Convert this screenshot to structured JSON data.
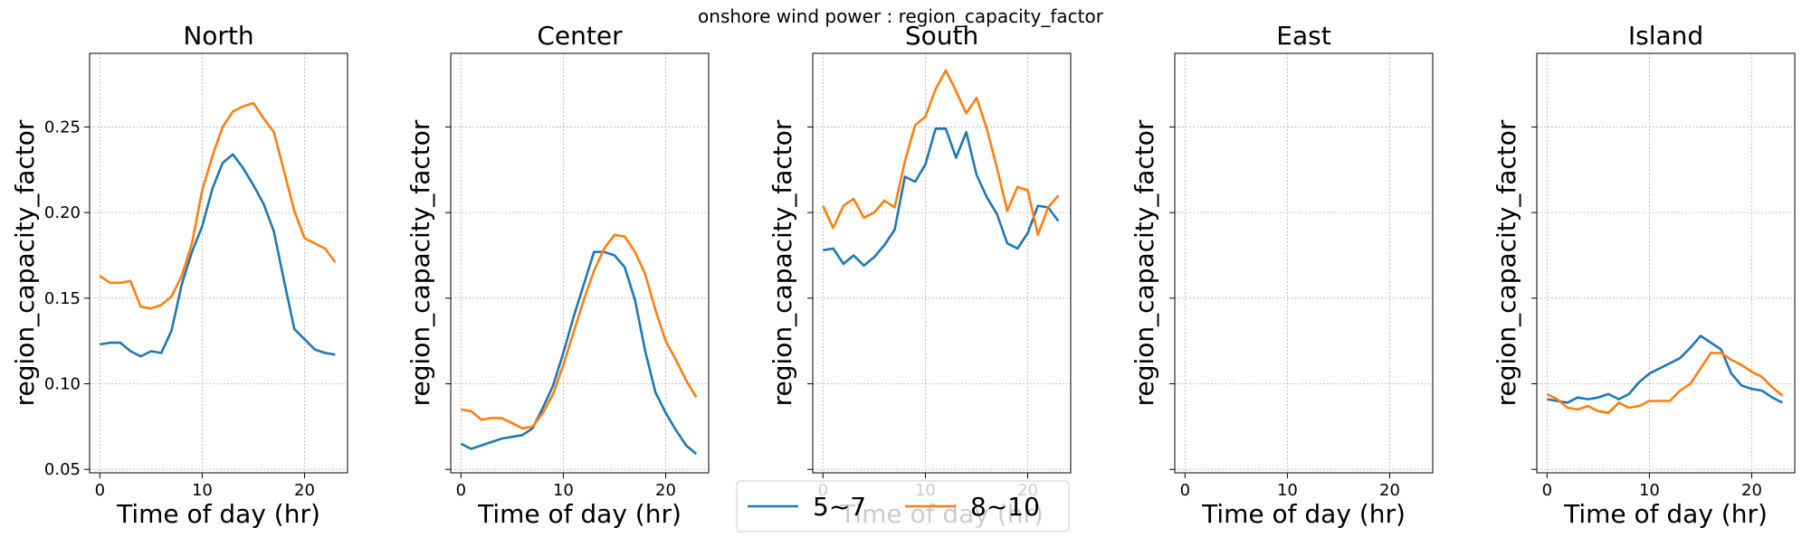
{
  "figure": {
    "suptitle": "onshore wind power : region_capacity_factor"
  },
  "colors": {
    "series_1": "#1f77b4",
    "series_2": "#ff7f0e",
    "grid": "#b0b0b0"
  },
  "legend": {
    "placement": "lower center",
    "entries": [
      "5~7",
      "8~10"
    ]
  },
  "chart_data": [
    {
      "type": "line",
      "title": "North",
      "xlabel": "Time of day (hr)",
      "ylabel": "region_capacity_factor",
      "xlim": [
        -1,
        24.2
      ],
      "ylim": [
        0.048,
        0.293
      ],
      "xticks": [
        0,
        10,
        20
      ],
      "yticks": [
        0.05,
        0.1,
        0.15,
        0.2,
        0.25
      ],
      "ytick_labels": [
        "0.05",
        "0.10",
        "0.15",
        "0.20",
        "0.25"
      ],
      "grid": true,
      "x": [
        0,
        1,
        2,
        3,
        4,
        5,
        6,
        7,
        8,
        9,
        10,
        11,
        12,
        13,
        14,
        15,
        16,
        17,
        18,
        19,
        20,
        21,
        22,
        23
      ],
      "series": [
        {
          "name": "5~7",
          "values": [
            0.123,
            0.124,
            0.124,
            0.119,
            0.116,
            0.119,
            0.118,
            0.131,
            0.158,
            0.177,
            0.192,
            0.214,
            0.229,
            0.234,
            0.226,
            0.216,
            0.205,
            0.189,
            0.16,
            0.132,
            0.126,
            0.12,
            0.118,
            0.117
          ]
        },
        {
          "name": "8~10",
          "values": [
            0.163,
            0.159,
            0.159,
            0.16,
            0.145,
            0.144,
            0.146,
            0.151,
            0.163,
            0.182,
            0.213,
            0.233,
            0.25,
            0.259,
            0.262,
            0.264,
            0.255,
            0.247,
            0.224,
            0.201,
            0.185,
            0.182,
            0.179,
            0.171
          ]
        }
      ]
    },
    {
      "type": "line",
      "title": "Center",
      "xlabel": "Time of day (hr)",
      "ylabel": "region_capacity_factor",
      "xlim": [
        -1,
        24.2
      ],
      "ylim": [
        0.048,
        0.293
      ],
      "xticks": [
        0,
        10,
        20
      ],
      "yticks": [
        0.05,
        0.1,
        0.15,
        0.2,
        0.25
      ],
      "ytick_labels": [
        "",
        "",
        "",
        "",
        ""
      ],
      "grid": true,
      "x": [
        0,
        1,
        2,
        3,
        4,
        5,
        6,
        7,
        8,
        9,
        10,
        11,
        12,
        13,
        14,
        15,
        16,
        17,
        18,
        19,
        20,
        21,
        22,
        23
      ],
      "series": [
        {
          "name": "5~7",
          "values": [
            0.065,
            0.062,
            0.064,
            0.066,
            0.068,
            0.069,
            0.07,
            0.074,
            0.086,
            0.099,
            0.118,
            0.139,
            0.158,
            0.177,
            0.177,
            0.175,
            0.168,
            0.149,
            0.119,
            0.095,
            0.083,
            0.073,
            0.064,
            0.059
          ]
        },
        {
          "name": "8~10",
          "values": [
            0.085,
            0.084,
            0.079,
            0.08,
            0.08,
            0.077,
            0.074,
            0.075,
            0.083,
            0.094,
            0.111,
            0.13,
            0.149,
            0.166,
            0.179,
            0.187,
            0.186,
            0.177,
            0.164,
            0.143,
            0.125,
            0.114,
            0.102,
            0.092
          ]
        }
      ]
    },
    {
      "type": "line",
      "title": "South",
      "xlabel": "Time of day (hr)",
      "ylabel": "region_capacity_factor",
      "xlim": [
        -1,
        24.2
      ],
      "ylim": [
        0.048,
        0.293
      ],
      "xticks": [
        0,
        10,
        20
      ],
      "yticks": [
        0.05,
        0.1,
        0.15,
        0.2,
        0.25
      ],
      "ytick_labels": [
        "",
        "",
        "",
        "",
        ""
      ],
      "grid": true,
      "x": [
        0,
        1,
        2,
        3,
        4,
        5,
        6,
        7,
        8,
        9,
        10,
        11,
        12,
        13,
        14,
        15,
        16,
        17,
        18,
        19,
        20,
        21,
        22,
        23
      ],
      "series": [
        {
          "name": "5~7",
          "values": [
            0.178,
            0.179,
            0.17,
            0.175,
            0.169,
            0.174,
            0.181,
            0.19,
            0.221,
            0.218,
            0.228,
            0.249,
            0.249,
            0.232,
            0.247,
            0.222,
            0.209,
            0.199,
            0.182,
            0.179,
            0.188,
            0.204,
            0.203,
            0.195
          ]
        },
        {
          "name": "8~10",
          "values": [
            0.204,
            0.191,
            0.204,
            0.208,
            0.197,
            0.2,
            0.207,
            0.203,
            0.23,
            0.251,
            0.256,
            0.272,
            0.283,
            0.271,
            0.258,
            0.267,
            0.249,
            0.226,
            0.201,
            0.215,
            0.213,
            0.187,
            0.203,
            0.21
          ]
        }
      ]
    },
    {
      "type": "line",
      "title": "East",
      "xlabel": "Time of day (hr)",
      "ylabel": "region_capacity_factor",
      "xlim": [
        -1,
        24.2
      ],
      "ylim": [
        0.048,
        0.293
      ],
      "xticks": [
        0,
        10,
        20
      ],
      "yticks": [
        0.05,
        0.1,
        0.15,
        0.2,
        0.25
      ],
      "ytick_labels": [
        "",
        "",
        "",
        "",
        ""
      ],
      "grid": true,
      "x": [],
      "series": []
    },
    {
      "type": "line",
      "title": "Island",
      "xlabel": "Time of day (hr)",
      "ylabel": "region_capacity_factor",
      "xlim": [
        -1,
        24.2
      ],
      "ylim": [
        0.048,
        0.293
      ],
      "xticks": [
        0,
        10,
        20
      ],
      "yticks": [
        0.05,
        0.1,
        0.15,
        0.2,
        0.25
      ],
      "ytick_labels": [
        "",
        "",
        "",
        "",
        ""
      ],
      "grid": true,
      "x": [
        0,
        1,
        2,
        3,
        4,
        5,
        6,
        7,
        8,
        9,
        10,
        11,
        12,
        13,
        14,
        15,
        16,
        17,
        18,
        19,
        20,
        21,
        22,
        23
      ],
      "series": [
        {
          "name": "5~7",
          "values": [
            0.091,
            0.09,
            0.089,
            0.092,
            0.091,
            0.092,
            0.094,
            0.091,
            0.094,
            0.101,
            0.106,
            0.109,
            0.112,
            0.115,
            0.121,
            0.128,
            0.124,
            0.12,
            0.106,
            0.099,
            0.097,
            0.096,
            0.092,
            0.089
          ]
        },
        {
          "name": "8~10",
          "values": [
            0.094,
            0.091,
            0.086,
            0.085,
            0.087,
            0.084,
            0.083,
            0.089,
            0.086,
            0.087,
            0.09,
            0.09,
            0.09,
            0.096,
            0.1,
            0.109,
            0.118,
            0.118,
            0.114,
            0.111,
            0.107,
            0.104,
            0.098,
            0.093
          ]
        }
      ]
    }
  ]
}
